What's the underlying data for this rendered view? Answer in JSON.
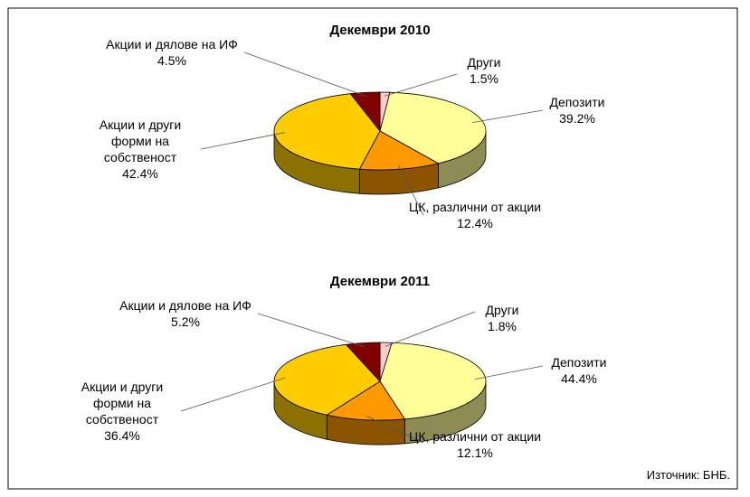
{
  "chart_data": [
    {
      "type": "pie3d",
      "title": "Декември 2010",
      "categories": [
        "Други",
        "Депозити",
        "ЦК, различни от акции",
        "Акции и други форми на собственост",
        "Акции и дялове на ИФ"
      ],
      "values": [
        1.5,
        39.2,
        12.4,
        42.4,
        4.5
      ],
      "value_labels": [
        "1.5%",
        "39.2%",
        "12.4%",
        "42.4%",
        "4.5%"
      ],
      "colors": [
        "#ffcccc",
        "#ffff99",
        "#ff9900",
        "#ffcc00",
        "#800000"
      ]
    },
    {
      "type": "pie3d",
      "title": "Декември 2011",
      "categories": [
        "Други",
        "Депозити",
        "ЦК, различни от акции",
        "Акции и други форми на собственост",
        "Акции и дялове на ИФ"
      ],
      "values": [
        1.8,
        44.4,
        12.1,
        36.4,
        5.2
      ],
      "value_labels": [
        "1.8%",
        "44.4%",
        "12.1%",
        "36.4%",
        "5.2%"
      ],
      "colors": [
        "#ffcccc",
        "#ffff99",
        "#ff9900",
        "#ffcc00",
        "#800000"
      ]
    }
  ],
  "source": "Източник: БНБ."
}
